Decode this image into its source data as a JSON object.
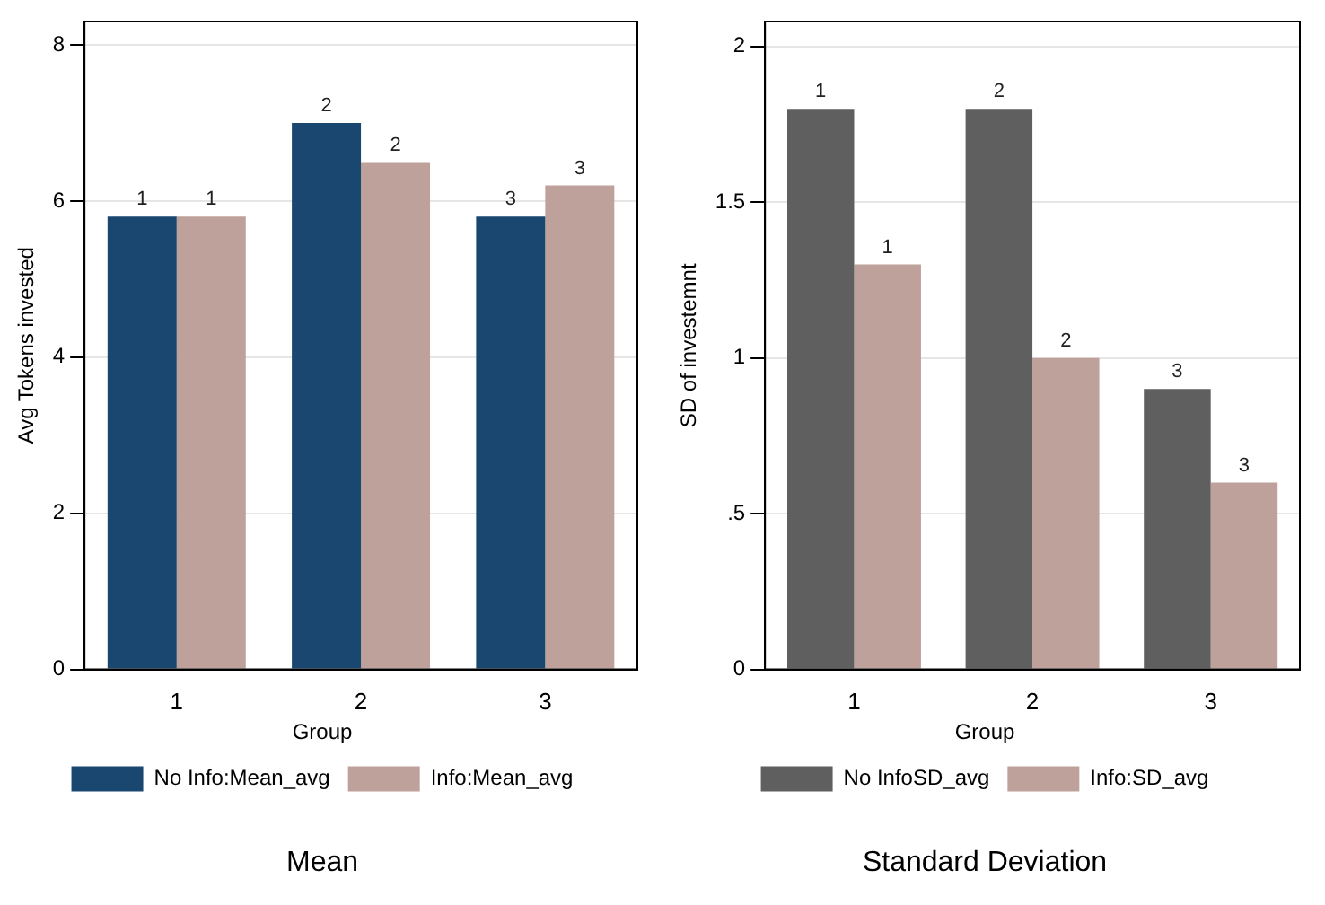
{
  "chart_data": [
    {
      "type": "bar",
      "title": "Mean",
      "ylabel": "Avg Tokens invested",
      "legend_title": "Group",
      "categories": [
        "1",
        "2",
        "3"
      ],
      "series": [
        {
          "name": "No Info:Mean_avg",
          "color": "#1a476f",
          "values": [
            5.8,
            7.0,
            5.8
          ]
        },
        {
          "name": "Info:Mean_avg",
          "color": "#bea19b",
          "values": [
            5.8,
            6.5,
            6.2
          ]
        }
      ],
      "annotations": [
        {
          "text": "1",
          "x": "1",
          "y": 5.8
        },
        {
          "text": "2",
          "x": "2",
          "y": 7.0
        },
        {
          "text": "3",
          "x": "3",
          "y": 5.8
        },
        {
          "text": "1",
          "x": "1",
          "y": 5.8
        },
        {
          "text": "2",
          "x": "2",
          "y": 6.5
        },
        {
          "text": "3",
          "x": "3",
          "y": 6.2
        }
      ],
      "ylim": [
        0,
        8.3
      ],
      "yticks": [
        0,
        2,
        4,
        6,
        8
      ],
      "grid": "y",
      "legend": "bottom"
    },
    {
      "type": "bar",
      "title": "Standard Deviation",
      "ylabel": "SD of investemnt",
      "legend_title": "Group",
      "categories": [
        "1",
        "2",
        "3"
      ],
      "series": [
        {
          "name": "No InfoSD_avg",
          "color": "#5f5f5f",
          "values": [
            1.8,
            1.8,
            0.9
          ]
        },
        {
          "name": "Info:SD_avg",
          "color": "#bea19b",
          "values": [
            1.3,
            1.0,
            0.6
          ]
        }
      ],
      "annotations": [
        {
          "text": "1",
          "x": "1",
          "y": 1.8
        },
        {
          "text": "2",
          "x": "2",
          "y": 1.8
        },
        {
          "text": "3",
          "x": "3",
          "y": 0.9
        },
        {
          "text": "1",
          "x": "1",
          "y": 1.3
        },
        {
          "text": "2",
          "x": "2",
          "y": 1.0
        },
        {
          "text": "3",
          "x": "3",
          "y": 0.6
        }
      ],
      "ylim": [
        0,
        2.08
      ],
      "yticks": [
        0,
        {
          "value": 0.5,
          "label": ".5"
        },
        1,
        1.5,
        2
      ],
      "grid": "y",
      "legend": "bottom"
    }
  ]
}
